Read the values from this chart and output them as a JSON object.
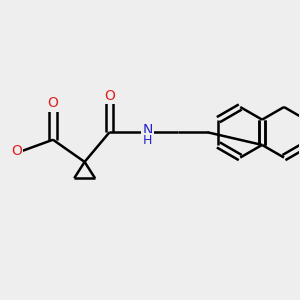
{
  "background_color": "#eeeeee",
  "bond_color": "#000000",
  "line_width": 1.8,
  "atom_colors": {
    "O": "#dd2222",
    "N": "#2222cc",
    "H": "#888888"
  },
  "figsize": [
    3.0,
    3.0
  ],
  "dpi": 100
}
